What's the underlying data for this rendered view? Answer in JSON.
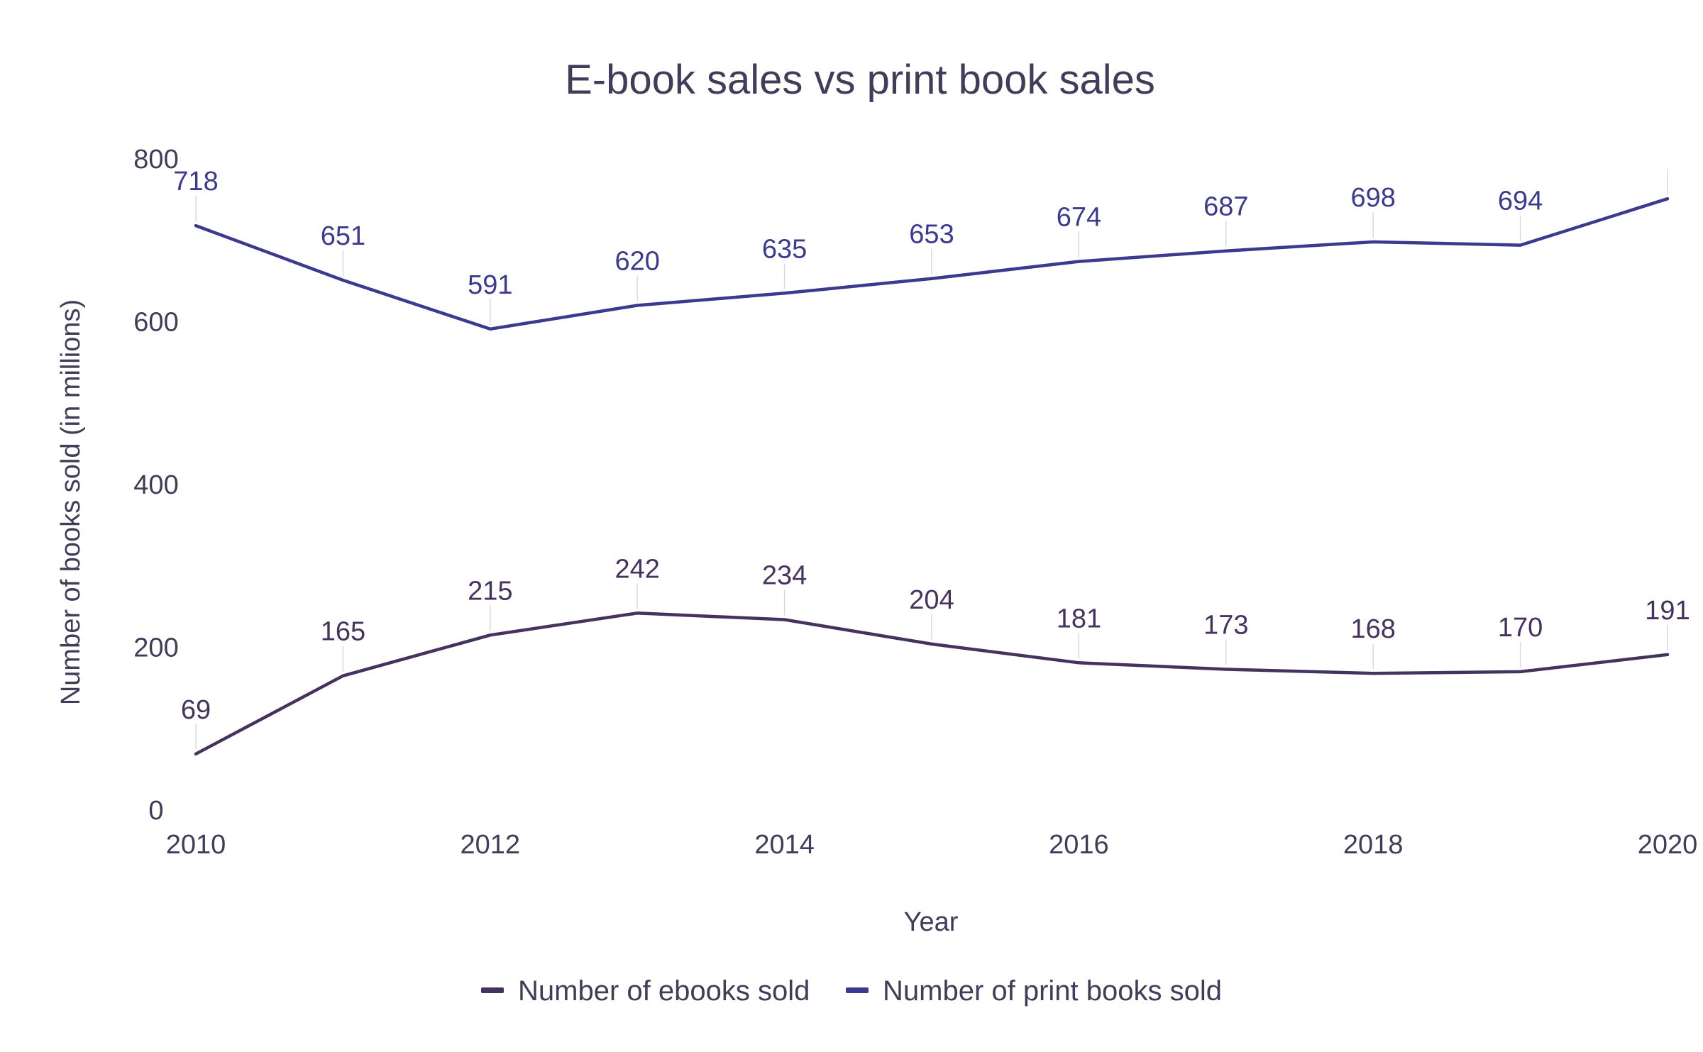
{
  "chart_data": {
    "type": "line",
    "title": "E-book sales vs print book sales",
    "xlabel": "Year",
    "ylabel": "Number of books sold (in millions)",
    "x": [
      2010,
      2011,
      2012,
      2013,
      2014,
      2015,
      2016,
      2017,
      2018,
      2019,
      2020
    ],
    "xticks": [
      2010,
      2012,
      2014,
      2016,
      2018,
      2020
    ],
    "yticks": [
      0,
      200,
      400,
      600,
      800
    ],
    "xlim": [
      2010,
      2020
    ],
    "ylim": [
      0,
      800
    ],
    "grid": false,
    "legend_position": "bottom-center",
    "series": [
      {
        "name": "Number of ebooks sold",
        "color": "#45325f",
        "values": [
          69,
          165,
          215,
          242,
          234,
          204,
          181,
          173,
          168,
          170,
          191
        ],
        "labels": [
          "69",
          "165",
          "215",
          "242",
          "234",
          "204",
          "181",
          "173",
          "168",
          "170",
          "191"
        ]
      },
      {
        "name": "Number of print books sold",
        "color": "#3b3a8e",
        "values": [
          718,
          651,
          591,
          620,
          635,
          653,
          674,
          687,
          698,
          694,
          751
        ],
        "labels": [
          "718",
          "651",
          "591",
          "620",
          "635",
          "653",
          "674",
          "687",
          "698",
          "694",
          ""
        ]
      }
    ]
  }
}
